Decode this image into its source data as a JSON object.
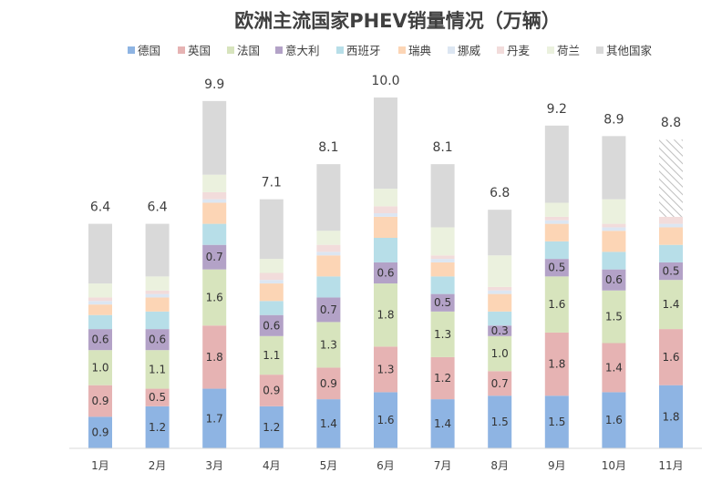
{
  "chart_data": {
    "type": "bar",
    "stacked": true,
    "title": "欧洲主流国家PHEV销量情况（万辆）",
    "legend_position": "top",
    "grid": false,
    "categories": [
      "1月",
      "2月",
      "3月",
      "4月",
      "5月",
      "6月",
      "7月",
      "8月",
      "9月",
      "10月",
      "11月"
    ],
    "totals": [
      6.4,
      6.4,
      9.9,
      7.1,
      8.1,
      10.0,
      8.1,
      6.8,
      9.2,
      8.9,
      8.8
    ],
    "total_labels": [
      "6.4",
      "6.4",
      "9.9",
      "7.1",
      "8.1",
      "10.0",
      "8.1",
      "6.8",
      "9.2",
      "8.9",
      "8.8"
    ],
    "ylim": [
      0,
      11
    ],
    "series": [
      {
        "name": "德国",
        "color": "#8eb4e3",
        "values": [
          0.9,
          1.2,
          1.7,
          1.2,
          1.4,
          1.6,
          1.4,
          1.5,
          1.5,
          1.6,
          1.8
        ],
        "labels": [
          "0.9",
          "1.2",
          "1.7",
          "1.2",
          "1.4",
          "1.6",
          "1.4",
          "1.5",
          "1.5",
          "1.6",
          "1.8"
        ]
      },
      {
        "name": "英国",
        "color": "#e6b3b3",
        "values": [
          0.9,
          0.5,
          1.8,
          0.9,
          0.9,
          1.3,
          1.2,
          0.7,
          1.8,
          1.4,
          1.6
        ],
        "labels": [
          "0.9",
          "0.5",
          "1.8",
          "0.9",
          "0.9",
          "1.3",
          "1.2",
          "0.7",
          "1.8",
          "1.4",
          "1.6"
        ]
      },
      {
        "name": "法国",
        "color": "#d7e4bd",
        "values": [
          1.0,
          1.1,
          1.6,
          1.1,
          1.3,
          1.8,
          1.3,
          1.0,
          1.6,
          1.5,
          1.4
        ],
        "labels": [
          "1.0",
          "1.1",
          "1.6",
          "1.1",
          "1.3",
          "1.8",
          "1.3",
          "1.0",
          "1.6",
          "1.5",
          "1.4"
        ]
      },
      {
        "name": "意大利",
        "color": "#b3a2c7",
        "values": [
          0.6,
          0.6,
          0.7,
          0.6,
          0.7,
          0.6,
          0.5,
          0.3,
          0.5,
          0.6,
          0.5
        ],
        "labels": [
          "0.6",
          "0.6",
          "0.7",
          "0.6",
          "0.7",
          "0.6",
          "0.5",
          "0.3",
          "0.5",
          "0.6",
          "0.5"
        ]
      },
      {
        "name": "西班牙",
        "color": "#b7dee8",
        "values": [
          0.4,
          0.5,
          0.6,
          0.4,
          0.6,
          0.7,
          0.5,
          0.4,
          0.5,
          0.5,
          0.5
        ],
        "labels": [
          "",
          "",
          "",
          "",
          "",
          "",
          "",
          "",
          "",
          "",
          ""
        ]
      },
      {
        "name": "瑞典",
        "color": "#fcd5b5",
        "values": [
          0.3,
          0.4,
          0.6,
          0.5,
          0.6,
          0.6,
          0.4,
          0.5,
          0.5,
          0.6,
          0.5
        ],
        "labels": [
          "",
          "",
          "",
          "",
          "",
          "",
          "",
          "",
          "",
          "",
          ""
        ]
      },
      {
        "name": "挪威",
        "color": "#dce6f2",
        "values": [
          0.1,
          0.1,
          0.1,
          0.1,
          0.1,
          0.1,
          0.1,
          0.1,
          0.1,
          0.1,
          0.1
        ],
        "labels": [
          "",
          "",
          "",
          "",
          "",
          "",
          "",
          "",
          "",
          "",
          ""
        ]
      },
      {
        "name": "丹麦",
        "color": "#f2dcdb",
        "values": [
          0.1,
          0.1,
          0.2,
          0.2,
          0.2,
          0.2,
          0.1,
          0.1,
          0.1,
          0.1,
          0.2
        ],
        "labels": [
          "",
          "",
          "",
          "",
          "",
          "",
          "",
          "",
          "",
          "",
          ""
        ]
      },
      {
        "name": "荷兰",
        "color": "#ebf1de",
        "values": [
          0.4,
          0.4,
          0.5,
          0.4,
          0.4,
          0.5,
          0.8,
          0.9,
          0.4,
          0.7,
          0.0
        ],
        "labels": [
          "",
          "",
          "",
          "",
          "",
          "",
          "",
          "",
          "",
          "",
          ""
        ]
      },
      {
        "name": "其他国家",
        "color": "#d9d9d9",
        "values": [
          1.7,
          1.5,
          2.1,
          1.7,
          1.9,
          2.6,
          1.8,
          1.3,
          2.2,
          1.8,
          2.2
        ],
        "labels": [
          "",
          "",
          "",
          "",
          "",
          "",
          "",
          "",
          "",
          "",
          ""
        ]
      }
    ],
    "hatched_segment": {
      "series": "其他国家",
      "category": "11月",
      "color": "#bfbfbf"
    }
  }
}
